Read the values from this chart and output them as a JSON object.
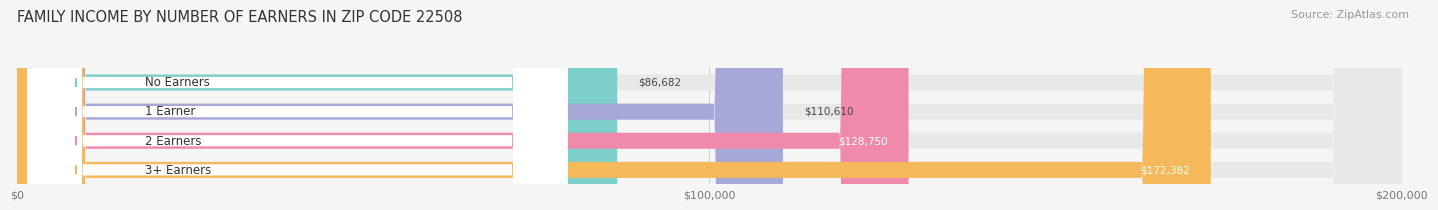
{
  "title": "FAMILY INCOME BY NUMBER OF EARNERS IN ZIP CODE 22508",
  "source": "Source: ZipAtlas.com",
  "categories": [
    "No Earners",
    "1 Earner",
    "2 Earners",
    "3+ Earners"
  ],
  "values": [
    86682,
    110610,
    128750,
    172382
  ],
  "labels": [
    "$86,682",
    "$110,610",
    "$128,750",
    "$172,382"
  ],
  "bar_colors": [
    "#7dcfcc",
    "#a8a8d8",
    "#f08aab",
    "#f5b85a"
  ],
  "bar_bg_color": "#e8e8e8",
  "xmax": 200000,
  "xtick_labels": [
    "$0",
    "$100,000",
    "$200,000"
  ],
  "background_color": "#f5f5f5",
  "title_fontsize": 10.5,
  "source_fontsize": 8,
  "label_fontsize": 7.5,
  "category_fontsize": 8.5,
  "bar_height": 0.55,
  "label_inside_threshold": 0.62
}
